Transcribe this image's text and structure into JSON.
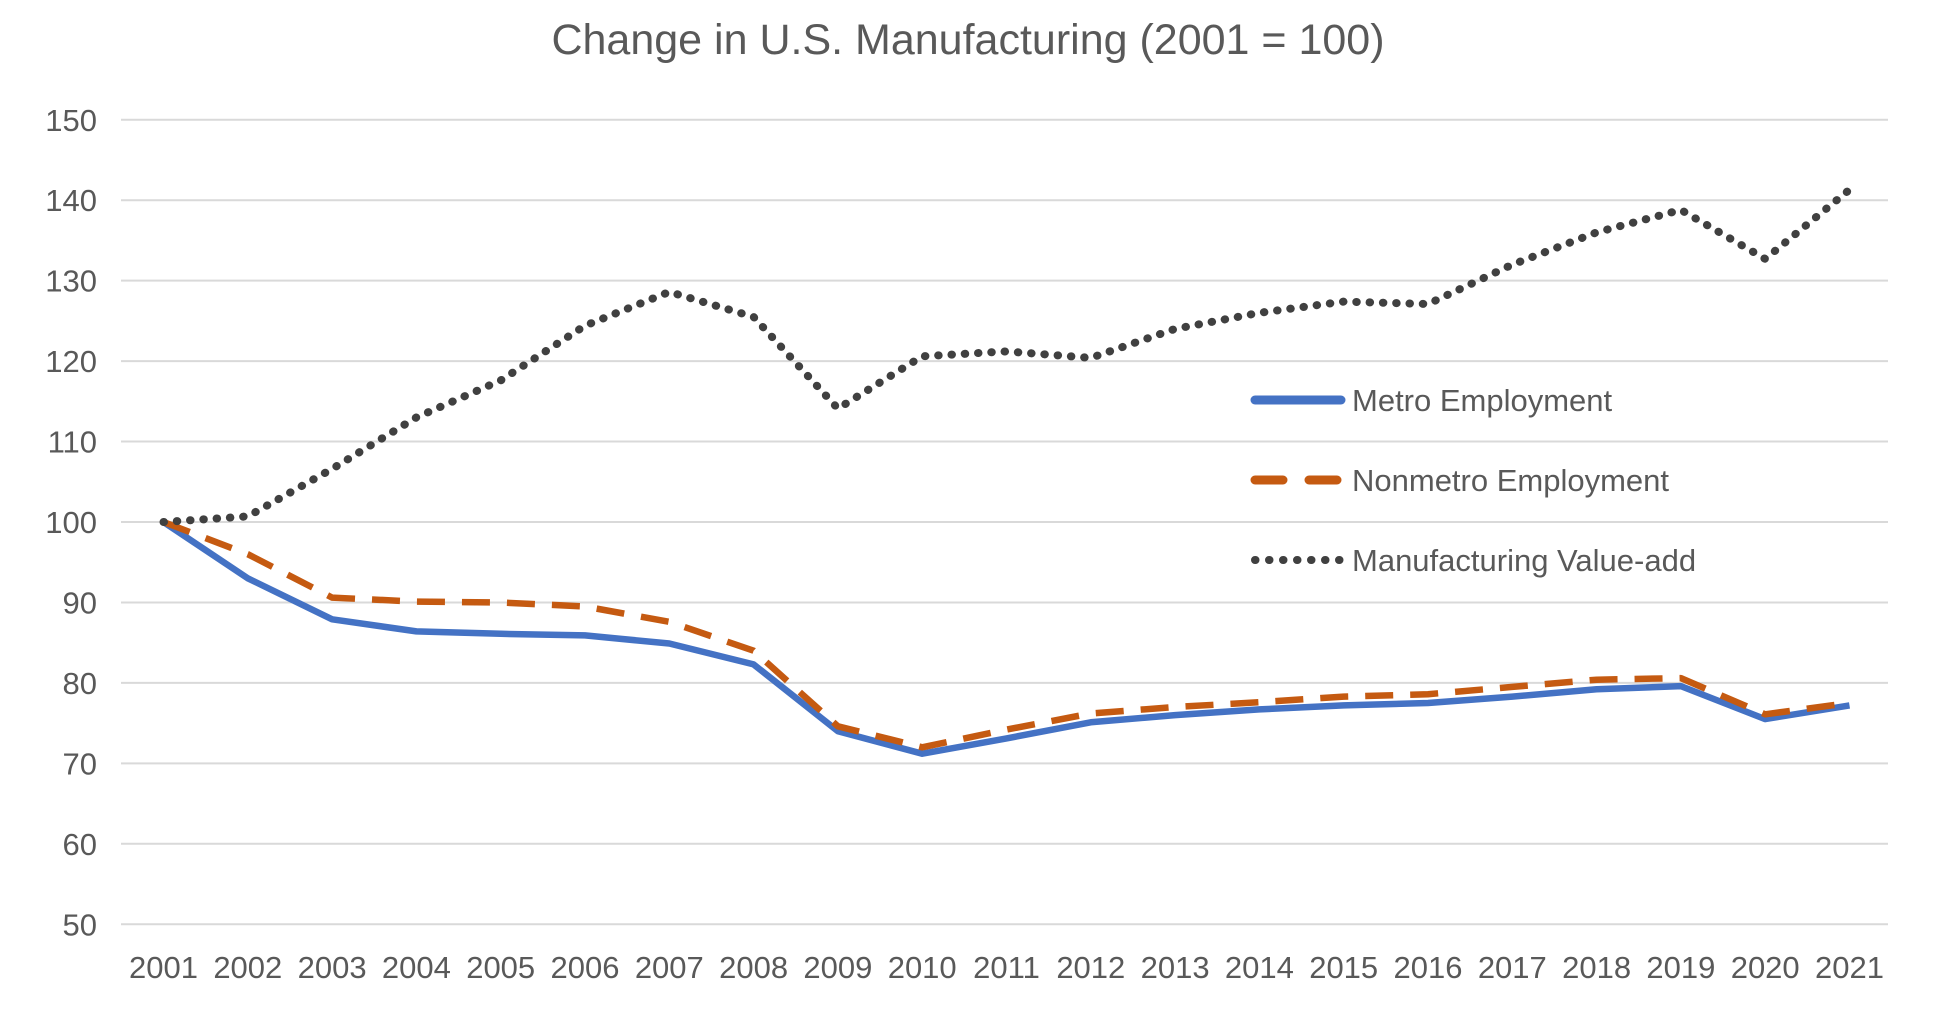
{
  "title": "Change in U.S. Manufacturing (2001 = 100)",
  "chart_data": {
    "type": "line",
    "title": "Change in U.S. Manufacturing (2001 = 100)",
    "x": [
      2001,
      2002,
      2003,
      2004,
      2005,
      2006,
      2007,
      2008,
      2009,
      2010,
      2011,
      2012,
      2013,
      2014,
      2015,
      2016,
      2017,
      2018,
      2019,
      2020,
      2021
    ],
    "series": [
      {
        "name": "Metro Employment",
        "color": "#4472C4",
        "style": "solid",
        "values": [
          100,
          93.0,
          87.9,
          86.4,
          86.1,
          85.9,
          84.9,
          82.3,
          74.0,
          71.2,
          73.1,
          75.1,
          76.0,
          76.7,
          77.2,
          77.5,
          78.3,
          79.2,
          79.6,
          75.5,
          77.2
        ]
      },
      {
        "name": "Nonmetro Employment",
        "color": "#C55A11",
        "style": "dashed",
        "values": [
          100,
          96.0,
          90.6,
          90.1,
          90.0,
          89.5,
          87.6,
          84.0,
          74.6,
          72.0,
          74.2,
          76.2,
          77.0,
          77.6,
          78.3,
          78.6,
          79.5,
          80.4,
          80.6,
          76.1,
          77.5
        ]
      },
      {
        "name": "Manufacturing Value-add",
        "color": "#404040",
        "style": "dotted",
        "values": [
          100,
          100.7,
          106.6,
          113.0,
          117.6,
          124.4,
          128.6,
          125.5,
          114.1,
          120.6,
          121.2,
          120.4,
          124.0,
          126.0,
          127.4,
          127.1,
          132.0,
          136.0,
          138.8,
          132.7,
          141.3
        ]
      }
    ],
    "ylim": [
      50,
      150
    ],
    "ytick_step": 10,
    "yticks": [
      50,
      60,
      70,
      80,
      90,
      100,
      110,
      120,
      130,
      140,
      150
    ],
    "grid": "horizontal",
    "legend_position": "middle-right",
    "xlabel": "",
    "ylabel": ""
  },
  "style": {
    "grid_color": "#D9D9D9",
    "text_color": "#595959",
    "background": "#FFFFFF"
  }
}
